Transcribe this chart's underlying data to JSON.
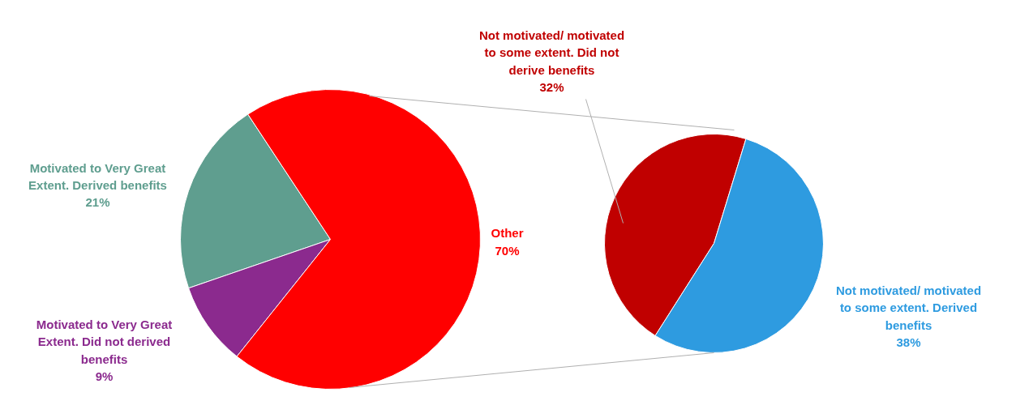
{
  "chart_data": [
    {
      "type": "pie",
      "categories": [
        "Motivated to Very Great Extent. Derived benefits",
        "Motivated to Very Great Extent. Did not derived benefits",
        "Other"
      ],
      "values": [
        21,
        9,
        70
      ],
      "value_labels": [
        "21%",
        "9%",
        "70%"
      ],
      "colors": [
        "#5f9e8f",
        "#8b2a8e",
        "#ff0000"
      ]
    },
    {
      "type": "pie",
      "categories": [
        "Not motivated/ motivated to some extent. Did not derive benefits",
        "Not motivated/ motivated to some extent. Derived benefits"
      ],
      "values": [
        32,
        38
      ],
      "value_labels": [
        "32%",
        "38%"
      ],
      "colors": [
        "#c00000",
        "#2e9be0"
      ]
    }
  ]
}
